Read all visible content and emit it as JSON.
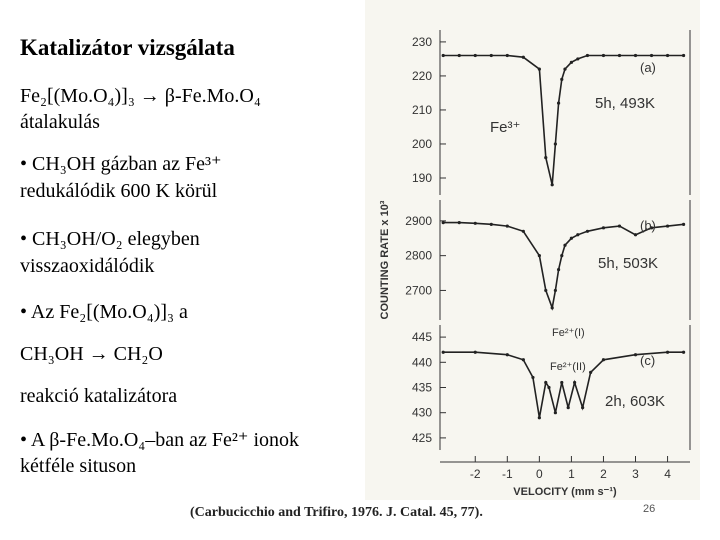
{
  "slide": {
    "title": "Katalizátor vizsgálata",
    "lines": [
      "Fe₂[(Mo.O₄)]₃ → β-Fe.Mo.O₄",
      "átalakulás",
      "• CH₃OH gázban az Fe³⁺",
      "redukálódik 600 K körül",
      "• CH₃OH/O₂ elegyben",
      "visszaoxidálódik",
      "• Az Fe₂[(Mo.O₄)]₃ a",
      "CH₃OH → CH₂O",
      "reakció katalizátora",
      "•  A β-Fe.Mo.O₄–ban az Fe²⁺ ionok",
      "kétféle situson"
    ],
    "citation": "(Carbucicchio and Trifiro, 1976. J. Catal. 45, 77).",
    "page_number": "26"
  },
  "chart_data": [
    {
      "type": "line",
      "label": "(a)",
      "condition": "5h, 493K",
      "annotations": [
        "Fe³⁺"
      ],
      "xlim": [
        -3.1,
        4.7
      ],
      "ylim": [
        185,
        233.5
      ],
      "yticks": [
        230,
        220,
        210,
        200,
        190
      ],
      "series": [
        {
          "color": "#222222",
          "x": [
            -3,
            -2.5,
            -2,
            -1.5,
            -1,
            -0.5,
            0,
            0.2,
            0.4,
            0.5,
            0.6,
            0.7,
            0.8,
            1,
            1.2,
            1.5,
            2,
            2.5,
            3,
            3.5,
            4,
            4.5
          ],
          "values": [
            226,
            226,
            226,
            226,
            226,
            225.5,
            222,
            196,
            188,
            200,
            212,
            219,
            222,
            224,
            225,
            226,
            226,
            226,
            226,
            226,
            226,
            226
          ]
        }
      ]
    },
    {
      "type": "line",
      "label": "(b)",
      "condition": "5h, 503K",
      "annotations": [],
      "ylabel": "COUNTING RATE x 10³",
      "xlim": [
        -3.1,
        4.7
      ],
      "ylim": [
        2615,
        2960
      ],
      "yticks": [
        2900,
        2800,
        2700
      ],
      "series": [
        {
          "color": "#222222",
          "x": [
            -3,
            -2.5,
            -2,
            -1.5,
            -1,
            -0.5,
            0,
            0.2,
            0.4,
            0.5,
            0.6,
            0.7,
            0.8,
            1,
            1.2,
            1.5,
            2,
            2.5,
            3,
            3.5,
            4,
            4.5
          ],
          "values": [
            2895,
            2895,
            2893,
            2890,
            2885,
            2870,
            2800,
            2700,
            2650,
            2700,
            2760,
            2800,
            2830,
            2850,
            2860,
            2870,
            2880,
            2885,
            2860,
            2880,
            2885,
            2890
          ]
        }
      ]
    },
    {
      "type": "line",
      "label": "(c)",
      "condition": "2h, 603K",
      "annotations": [
        "Fe²⁺(I)",
        "Fe²⁺(II)"
      ],
      "xlabel": "VELOCITY (mm s⁻¹)",
      "xlim": [
        -3.1,
        4.7
      ],
      "xticks": [
        -2,
        -1,
        0,
        1,
        2,
        3,
        4
      ],
      "ylim": [
        422.6,
        447.4
      ],
      "yticks": [
        445,
        440,
        435,
        430,
        425
      ],
      "series": [
        {
          "color": "#222222",
          "x": [
            -3,
            -2,
            -1,
            -0.5,
            -0.2,
            0,
            0.2,
            0.3,
            0.5,
            0.7,
            0.9,
            1.1,
            1.35,
            1.6,
            2,
            3,
            4,
            4.5
          ],
          "values": [
            442,
            442,
            441.5,
            440.5,
            437,
            429,
            436,
            435,
            430,
            436,
            431,
            436,
            431,
            438,
            440.5,
            441.5,
            442,
            442
          ]
        }
      ]
    }
  ]
}
